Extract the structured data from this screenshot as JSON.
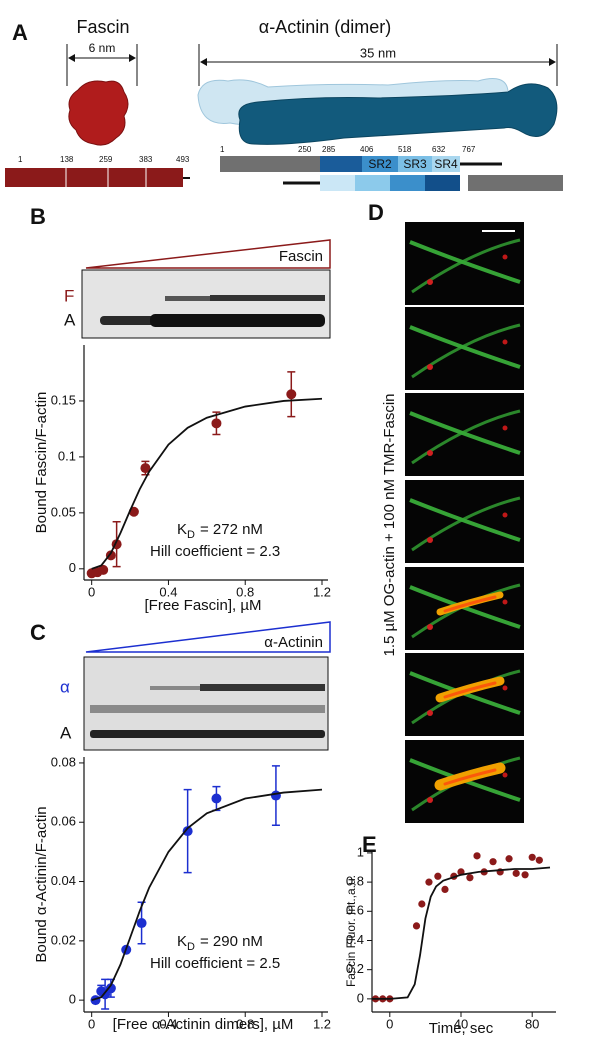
{
  "panels": {
    "A": "A",
    "B": "B",
    "C": "C",
    "D": "D",
    "E": "E"
  },
  "panel_a": {
    "fascin": {
      "title": "Fascin",
      "size": "6 nm",
      "residues": [
        1,
        138,
        259,
        383,
        493
      ]
    },
    "actinin": {
      "title": "α-Actinin (dimer)",
      "size": "35 nm",
      "residues": [
        1,
        250,
        285,
        406,
        518,
        632,
        767
      ],
      "domains": [
        "SR2",
        "SR3",
        "SR4"
      ]
    }
  },
  "gels": [
    {
      "protein": "Fascin",
      "bands": [
        "F",
        "A"
      ]
    },
    {
      "protein": "α-Actinin",
      "bands": [
        "α",
        "A"
      ]
    }
  ],
  "panel_d": {
    "label": "1.5 µM OG-actin + 100 nM TMR-Fascin"
  },
  "chart_data": [
    {
      "type": "scatter",
      "xlabel": "[Free Fascin], µM",
      "ylabel": "Bound Fascin/F-actin",
      "annotations": {
        "kd": {
          "symbol": "K",
          "subscript": "D",
          "text": "= 272 nM"
        },
        "hill": "Hill coefficient = 2.3"
      },
      "xlim": [
        -0.04,
        1.2
      ],
      "ylim": [
        -0.01,
        0.2
      ],
      "xticks": [
        0,
        0.4,
        0.8,
        1.2
      ],
      "yticks": [
        0,
        0.05,
        0.1,
        0.15
      ],
      "series": [
        {
          "color": "#8b1a1a",
          "x": [
            0,
            0.03,
            0.06,
            0.1,
            0.13,
            0.22,
            0.28,
            0.65,
            1.04
          ],
          "values": [
            -0.004,
            -0.003,
            -0.001,
            0.012,
            0.022,
            0.051,
            0.09,
            0.13,
            0.156
          ],
          "errors": [
            null,
            null,
            null,
            null,
            0.02,
            null,
            0.006,
            0.01,
            0.02
          ]
        },
        {
          "color": "#111111",
          "line": true,
          "x": [
            0,
            0.05,
            0.1,
            0.15,
            0.2,
            0.25,
            0.3,
            0.4,
            0.5,
            0.6,
            0.8,
            1.0,
            1.2
          ],
          "values": [
            0,
            0.003,
            0.014,
            0.032,
            0.052,
            0.071,
            0.087,
            0.111,
            0.126,
            0.135,
            0.145,
            0.15,
            0.152
          ]
        }
      ]
    },
    {
      "type": "scatter",
      "xlabel": "[Free α-Actinin dimers], µM",
      "ylabel": "Bound α-Actinin/F-actin",
      "annotations": {
        "kd": {
          "symbol": "K",
          "subscript": "D",
          "text": "= 290 nM"
        },
        "hill": "Hill coefficient = 2.5"
      },
      "xlim": [
        -0.04,
        1.2
      ],
      "ylim": [
        -0.004,
        0.082
      ],
      "xticks": [
        0,
        0.4,
        0.8,
        1.2
      ],
      "yticks": [
        0,
        0.02,
        0.04,
        0.06,
        0.08
      ],
      "series": [
        {
          "color": "#1c2fd0",
          "x": [
            0.02,
            0.05,
            0.07,
            0.1,
            0.18,
            0.26,
            0.5,
            0.65,
            0.96
          ],
          "values": [
            0,
            0.003,
            0.002,
            0.004,
            0.017,
            0.026,
            0.057,
            0.068,
            0.069
          ],
          "errors": [
            null,
            0.002,
            0.005,
            0.003,
            null,
            0.007,
            0.014,
            0.004,
            0.01
          ]
        },
        {
          "color": "#111111",
          "line": true,
          "x": [
            0,
            0.05,
            0.1,
            0.15,
            0.2,
            0.25,
            0.3,
            0.4,
            0.5,
            0.6,
            0.8,
            1.0,
            1.2
          ],
          "values": [
            0,
            0.001,
            0.005,
            0.012,
            0.021,
            0.03,
            0.038,
            0.05,
            0.058,
            0.063,
            0.068,
            0.07,
            0.071
          ]
        }
      ]
    },
    {
      "type": "scatter",
      "xlabel": "Time, sec",
      "ylabel": "Fascin Fluor. Int.,a.u.",
      "xlim": [
        -10,
        90
      ],
      "ylim": [
        -0.09,
        1.02
      ],
      "xticks": [
        0,
        40,
        80
      ],
      "yticks": [
        0,
        0.2,
        0.4,
        0.6,
        0.8,
        1
      ],
      "series": [
        {
          "color": "#8b1a1a",
          "x": [
            -8,
            -4,
            0,
            15,
            18,
            22,
            27,
            31,
            36,
            40,
            45,
            49,
            53,
            58,
            62,
            67,
            71,
            76,
            80,
            84
          ],
          "values": [
            0,
            0,
            0,
            0.5,
            0.65,
            0.8,
            0.84,
            0.75,
            0.84,
            0.87,
            0.83,
            0.98,
            0.87,
            0.94,
            0.87,
            0.96,
            0.86,
            0.85,
            0.97,
            0.95
          ]
        },
        {
          "color": "#111111",
          "line": true,
          "x": [
            -10,
            0,
            10,
            14,
            17,
            20,
            23,
            26,
            30,
            40,
            50,
            60,
            70,
            80,
            90
          ],
          "values": [
            0,
            0,
            0.01,
            0.1,
            0.3,
            0.55,
            0.7,
            0.77,
            0.81,
            0.85,
            0.87,
            0.88,
            0.89,
            0.89,
            0.9
          ]
        }
      ]
    }
  ]
}
